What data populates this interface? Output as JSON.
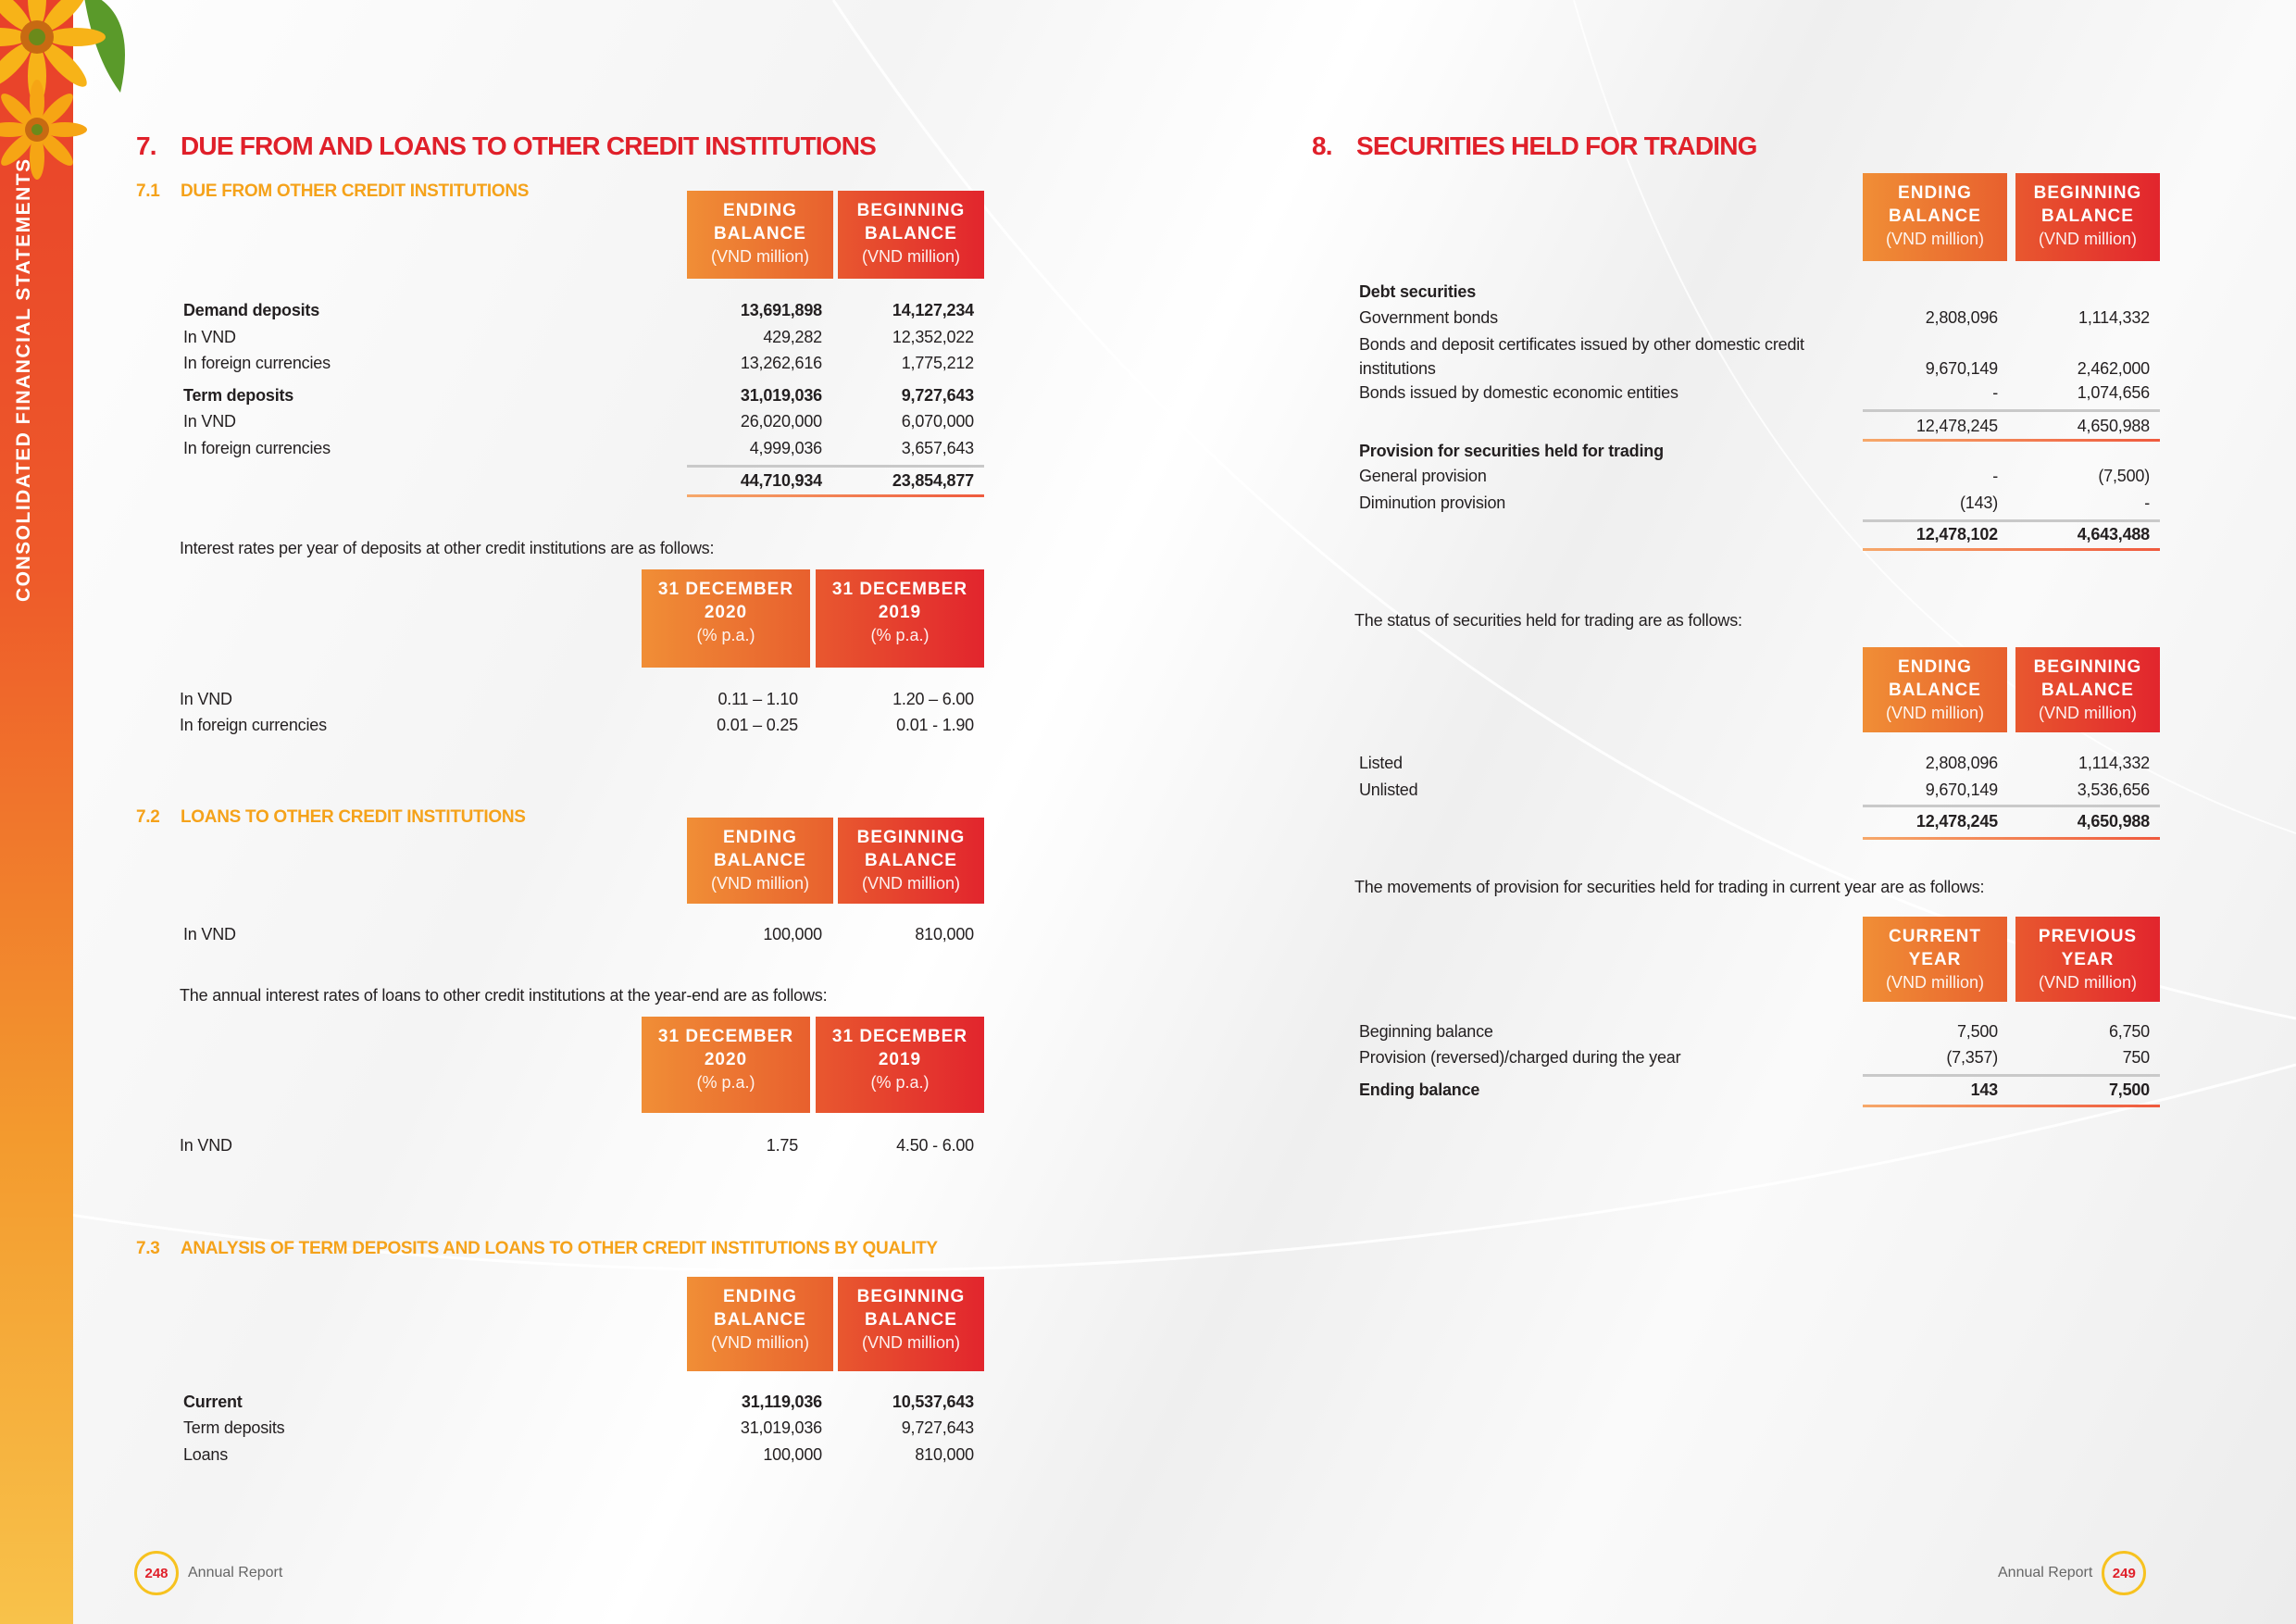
{
  "side_band": {
    "label": "CONSOLIDATED FINANCIAL STATEMENTS"
  },
  "left": {
    "section": {
      "number": "7.",
      "title": "DUE FROM AND LOANS TO OTHER CREDIT INSTITUTIONS"
    },
    "s71": {
      "number": "7.1",
      "title": "DUE FROM OTHER CREDIT INSTITUTIONS"
    },
    "t71": {
      "headers": [
        {
          "l1": "ENDING",
          "l2": "BALANCE",
          "unit": "(VND million)"
        },
        {
          "l1": "BEGINNING",
          "l2": "BALANCE",
          "unit": "(VND million)"
        }
      ],
      "rows": [
        {
          "label": "Demand deposits",
          "v1": "13,691,898",
          "v2": "14,127,234",
          "bold": true
        },
        {
          "label": "In VND",
          "v1": "429,282",
          "v2": "12,352,022"
        },
        {
          "label": "In foreign currencies",
          "v1": "13,262,616",
          "v2": "1,775,212"
        },
        {
          "label": "Term deposits",
          "v1": "31,019,036",
          "v2": "9,727,643",
          "bold": true
        },
        {
          "label": "In VND",
          "v1": "26,020,000",
          "v2": "6,070,000"
        },
        {
          "label": "In foreign currencies",
          "v1": "4,999,036",
          "v2": "3,657,643"
        },
        {
          "label": "",
          "v1": "44,710,934",
          "v2": "23,854,877",
          "bold": true
        }
      ]
    },
    "rates71_intro": "Interest rates per year of deposits at other credit institutions are as follows:",
    "r71": {
      "headers": [
        {
          "l1": "31 DECEMBER",
          "l2": "2020",
          "unit": "(% p.a.)"
        },
        {
          "l1": "31 DECEMBER",
          "l2": "2019",
          "unit": "(% p.a.)"
        }
      ],
      "rows": [
        {
          "label": "In VND",
          "v1": "0.11 – 1.10",
          "v2": "1.20 – 6.00"
        },
        {
          "label": "In foreign currencies",
          "v1": "0.01 – 0.25",
          "v2": "0.01 - 1.90"
        }
      ]
    },
    "s72": {
      "number": "7.2",
      "title": "LOANS TO OTHER CREDIT INSTITUTIONS"
    },
    "t72": {
      "headers": [
        {
          "l1": "ENDING",
          "l2": "BALANCE",
          "unit": "(VND million)"
        },
        {
          "l1": "BEGINNING",
          "l2": "BALANCE",
          "unit": "(VND million)"
        }
      ],
      "rows": [
        {
          "label": "In VND",
          "v1": "100,000",
          "v2": "810,000"
        }
      ]
    },
    "rates72_intro": "The annual interest rates of loans to other credit institutions at the year-end are as follows:",
    "r72": {
      "headers": [
        {
          "l1": "31 DECEMBER",
          "l2": "2020",
          "unit": "(% p.a.)"
        },
        {
          "l1": "31 DECEMBER",
          "l2": "2019",
          "unit": "(% p.a.)"
        }
      ],
      "rows": [
        {
          "label": "In VND",
          "v1": "1.75",
          "v2": "4.50 - 6.00"
        }
      ]
    },
    "s73": {
      "number": "7.3",
      "title": "ANALYSIS OF TERM DEPOSITS AND LOANS TO OTHER CREDIT INSTITUTIONS BY QUALITY"
    },
    "t73": {
      "headers": [
        {
          "l1": "ENDING",
          "l2": "BALANCE",
          "unit": "(VND million)"
        },
        {
          "l1": "BEGINNING",
          "l2": "BALANCE",
          "unit": "(VND million)"
        }
      ],
      "rows": [
        {
          "label": "Current",
          "v1": "31,119,036",
          "v2": "10,537,643",
          "bold": true
        },
        {
          "label": "Term deposits",
          "v1": "31,019,036",
          "v2": "9,727,643"
        },
        {
          "label": "Loans",
          "v1": "100,000",
          "v2": "810,000"
        }
      ]
    },
    "footer": {
      "page": "248",
      "label": "Annual Report"
    }
  },
  "right": {
    "section": {
      "number": "8.",
      "title": "SECURITIES HELD FOR TRADING"
    },
    "t8": {
      "headers": [
        {
          "l1": "ENDING",
          "l2": "BALANCE",
          "unit": "(VND million)"
        },
        {
          "l1": "BEGINNING",
          "l2": "BALANCE",
          "unit": "(VND million)"
        }
      ],
      "rows": [
        {
          "label": "Debt securities",
          "v1": "",
          "v2": "",
          "bold": true
        },
        {
          "label": "Government bonds",
          "v1": "2,808,096",
          "v2": "1,114,332"
        },
        {
          "label": "Bonds and deposit certificates issued by other domestic credit institutions",
          "v1": "9,670,149",
          "v2": "2,462,000"
        },
        {
          "label": "Bonds issued by domestic economic entities",
          "v1": "-",
          "v2": "1,074,656"
        },
        {
          "label": "",
          "v1": "12,478,245",
          "v2": "4,650,988"
        },
        {
          "label": "Provision for securities held for trading",
          "v1": "",
          "v2": "",
          "bold": true
        },
        {
          "label": "General provision",
          "v1": "-",
          "v2": "(7,500)"
        },
        {
          "label": "Diminution provision",
          "v1": "(143)",
          "v2": "-"
        },
        {
          "label": "",
          "v1": "12,478,102",
          "v2": "4,643,488",
          "bold": true
        }
      ]
    },
    "status_intro": "The status of securities held for trading are as follows:",
    "st8": {
      "headers": [
        {
          "l1": "ENDING",
          "l2": "BALANCE",
          "unit": "(VND million)"
        },
        {
          "l1": "BEGINNING",
          "l2": "BALANCE",
          "unit": "(VND million)"
        }
      ],
      "rows": [
        {
          "label": "Listed",
          "v1": "2,808,096",
          "v2": "1,114,332"
        },
        {
          "label": "Unlisted",
          "v1": "9,670,149",
          "v2": "3,536,656"
        },
        {
          "label": "",
          "v1": "12,478,245",
          "v2": "4,650,988",
          "bold": true
        }
      ]
    },
    "movement_intro": "The movements of provision for securities held for trading in current year are as follows:",
    "m8": {
      "headers": [
        {
          "l1": "CURRENT",
          "l2": "YEAR",
          "unit": "(VND million)"
        },
        {
          "l1": "PREVIOUS",
          "l2": "YEAR",
          "unit": "(VND million)"
        }
      ],
      "rows": [
        {
          "label": "Beginning balance",
          "v1": "7,500",
          "v2": "6,750"
        },
        {
          "label": "Provision (reversed)/charged during the year",
          "v1": "(7,357)",
          "v2": "750"
        },
        {
          "label": "Ending balance",
          "v1": "143",
          "v2": "7,500",
          "bold": true
        }
      ]
    },
    "footer": {
      "page": "249",
      "label": "Annual Report"
    }
  },
  "colors": {
    "title_red": "#e0202a",
    "subtitle_orange": "#f5a21a",
    "header_orange": "#f08e36",
    "header_red": "#e2252d"
  }
}
